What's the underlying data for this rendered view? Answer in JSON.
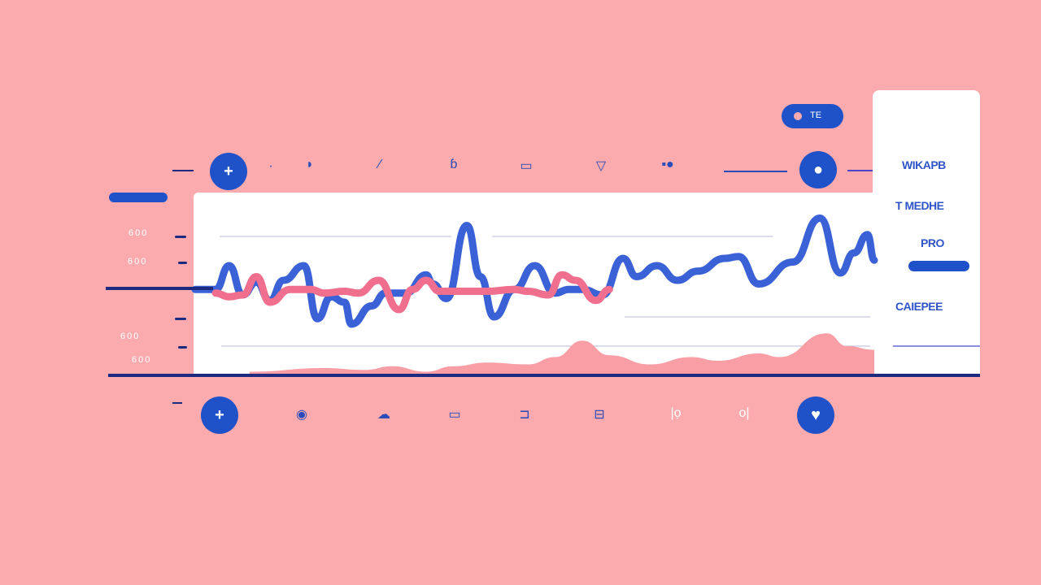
{
  "top_pill": {
    "label": "TE",
    "icon": "record-dot-icon"
  },
  "side_panel": {
    "items": [
      "WIKAPB",
      "T MEDHE",
      "PRO",
      "CAIEPEE"
    ],
    "progress": 1.0
  },
  "toolbar_top": [
    "add-icon",
    "dot-icon",
    "brush-icon",
    "pen-icon",
    "palette-icon",
    "layers-icon",
    "filter-icon",
    "toggle-icon",
    "slider-icon",
    "pin-icon"
  ],
  "toolbar_bottom": [
    "add-icon",
    "eye-icon",
    "cloud-icon",
    "layers-icon",
    "bracket-icon",
    "print-icon",
    "loop-icon",
    "toggle-icon",
    "heart-icon"
  ],
  "colors": {
    "background": "#fbaaad",
    "accent": "#1f52c9",
    "line_blue": "#3a62d6",
    "line_pink": "#f06e8e",
    "area_pink": "#fa9ea6",
    "axis": "#1c2a80"
  },
  "chart_data": {
    "type": "line",
    "y_tick_labels": [
      "600",
      "600",
      "600",
      "600"
    ],
    "xlim": [
      0,
      100
    ],
    "ylim": [
      0,
      100
    ],
    "grid": true,
    "series": [
      {
        "color": "#3a62d6",
        "x": [
          0,
          3,
          5,
          7,
          9,
          11,
          13,
          16,
          18,
          20,
          22,
          23,
          26,
          28,
          31,
          34,
          35,
          37,
          40,
          42,
          44,
          47,
          50,
          53,
          55,
          57,
          60,
          63,
          65,
          68,
          71,
          74,
          78,
          80,
          83,
          88,
          92,
          95,
          97,
          99,
          100
        ],
        "y": [
          47,
          47,
          60,
          44,
          51,
          41,
          52,
          60,
          31,
          43,
          40,
          28,
          38,
          45,
          45,
          55,
          50,
          42,
          82,
          54,
          32,
          47,
          60,
          45,
          47,
          47,
          44,
          64,
          54,
          60,
          52,
          57,
          64,
          65,
          50,
          62,
          86,
          56,
          67,
          77,
          63
        ]
      },
      {
        "color": "#f06e8e",
        "x": [
          3,
          5,
          7,
          9,
          11,
          14,
          17,
          19,
          22,
          24,
          27,
          30,
          32,
          34,
          36,
          41,
          43,
          47,
          49,
          52,
          54,
          56,
          59,
          61
        ],
        "y": [
          45,
          43,
          44,
          54,
          40,
          47,
          47,
          45,
          46,
          45,
          52,
          36,
          47,
          52,
          46,
          46,
          46,
          47,
          46,
          44,
          55,
          52,
          41,
          47
        ]
      },
      {
        "type": "area",
        "color": "#fa9ea6",
        "x": [
          8,
          19,
          25,
          29,
          34,
          38,
          43,
          49,
          53,
          57,
          61,
          67,
          73,
          77,
          83,
          86,
          93,
          96,
          100
        ],
        "y": [
          2,
          4,
          3,
          5,
          2,
          5,
          7,
          6,
          10,
          19,
          11,
          6,
          10,
          8,
          12,
          10,
          23,
          16,
          14
        ]
      }
    ]
  }
}
